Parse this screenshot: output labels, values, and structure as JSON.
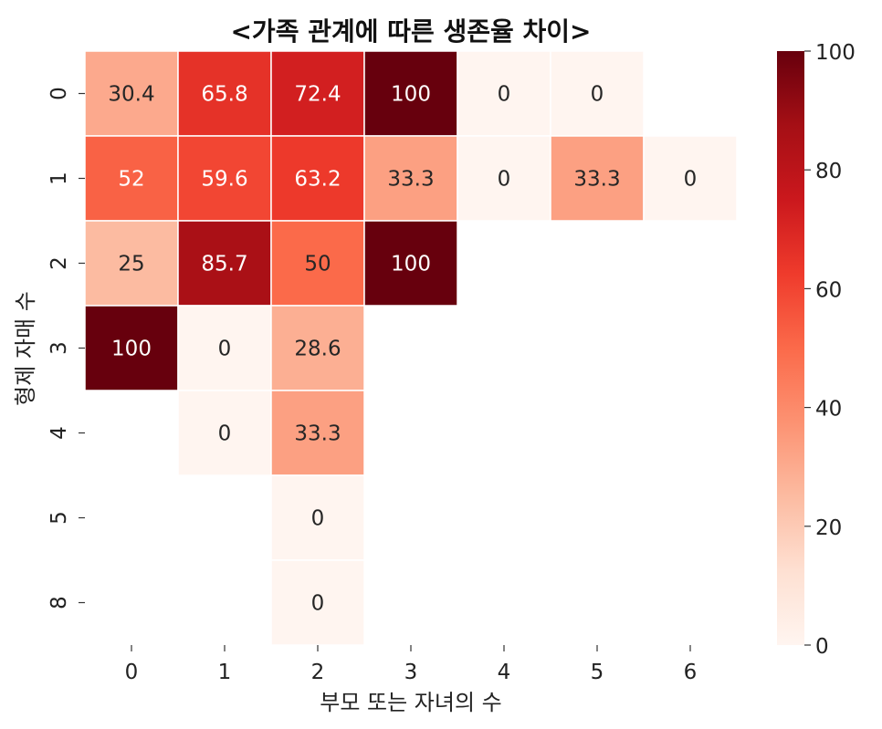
{
  "chart_data": {
    "type": "heatmap",
    "title": "<가족 관계에 따른 생존율 차이>",
    "xlabel": "부모 또는 자녀의 수",
    "ylabel": "형제 자매 수",
    "x_categories": [
      "0",
      "1",
      "2",
      "3",
      "4",
      "5",
      "6"
    ],
    "y_categories": [
      "0",
      "1",
      "2",
      "3",
      "4",
      "5",
      "8"
    ],
    "values": [
      [
        30.4,
        65.8,
        72.4,
        100,
        0,
        0,
        null
      ],
      [
        52,
        59.6,
        63.2,
        33.3,
        0,
        33.3,
        0
      ],
      [
        25,
        85.7,
        50,
        100,
        null,
        null,
        null
      ],
      [
        100,
        0,
        28.6,
        null,
        null,
        null,
        null
      ],
      [
        null,
        0,
        33.3,
        null,
        null,
        null,
        null
      ],
      [
        null,
        null,
        0,
        null,
        null,
        null,
        null
      ],
      [
        null,
        null,
        0,
        null,
        null,
        null,
        null
      ]
    ],
    "value_labels": [
      [
        "30.4",
        "65.8",
        "72.4",
        "100",
        "0",
        "0",
        null
      ],
      [
        "52",
        "59.6",
        "63.2",
        "33.3",
        "0",
        "33.3",
        "0"
      ],
      [
        "25",
        "85.7",
        "50",
        "100",
        null,
        null,
        null
      ],
      [
        "100",
        "0",
        "28.6",
        null,
        null,
        null,
        null
      ],
      [
        null,
        "0",
        "33.3",
        null,
        null,
        null,
        null
      ],
      [
        null,
        null,
        "0",
        null,
        null,
        null,
        null
      ],
      [
        null,
        null,
        "0",
        null,
        null,
        null,
        null
      ]
    ],
    "colorbar": {
      "min": 0,
      "max": 100,
      "ticks": [
        0,
        20,
        40,
        60,
        80,
        100
      ],
      "tick_labels": [
        "0",
        "20",
        "40",
        "60",
        "80",
        "100"
      ],
      "colormap": "Reds",
      "stops": [
        "#fff5f0",
        "#fee0d2",
        "#fcbba1",
        "#fc9272",
        "#fb6a4a",
        "#ef3b2c",
        "#cb181d",
        "#a50f15",
        "#67000d"
      ]
    }
  }
}
